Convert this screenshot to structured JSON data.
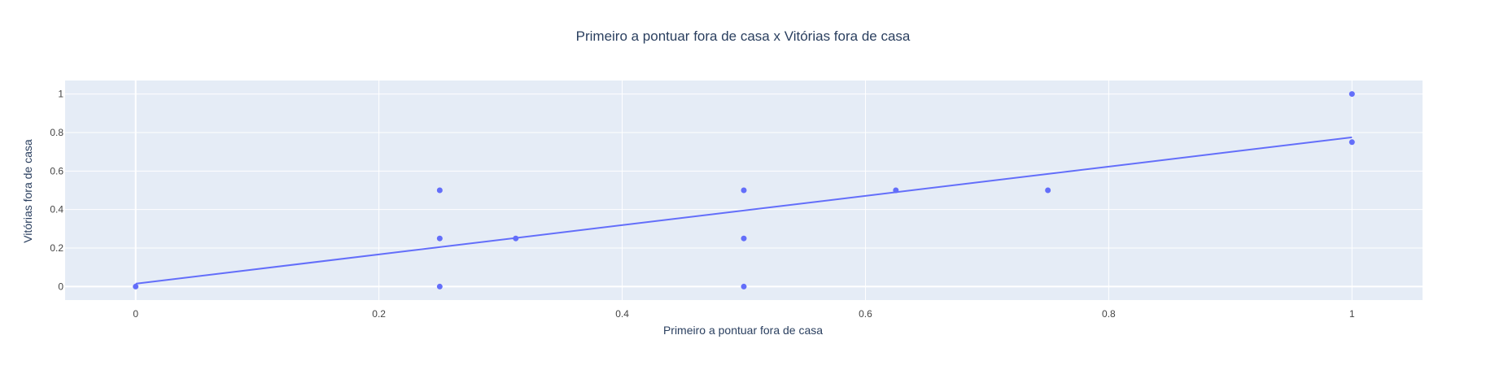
{
  "chart_data": {
    "type": "scatter",
    "title": "Primeiro a pontuar fora de casa x Vitórias fora de casa",
    "xlabel": "Primeiro a pontuar fora de casa",
    "ylabel": "Vitórias fora de casa",
    "xlim": [
      -0.058,
      1.058
    ],
    "ylim": [
      -0.07,
      1.07
    ],
    "x_ticks": [
      0,
      0.2,
      0.4,
      0.6,
      0.8,
      1
    ],
    "x_tick_labels": [
      "0",
      "0.2",
      "0.4",
      "0.6",
      "0.8",
      "1"
    ],
    "y_ticks": [
      0,
      0.2,
      0.4,
      0.6,
      0.8,
      1
    ],
    "y_tick_labels": [
      "0",
      "0.2",
      "0.4",
      "0.6",
      "0.8",
      "1"
    ],
    "grid": true,
    "points": [
      {
        "x": 0,
        "y": 0
      },
      {
        "x": 0.25,
        "y": 0
      },
      {
        "x": 0.25,
        "y": 0.25
      },
      {
        "x": 0.25,
        "y": 0.5
      },
      {
        "x": 0.3125,
        "y": 0.25
      },
      {
        "x": 0.5,
        "y": 0
      },
      {
        "x": 0.5,
        "y": 0.25
      },
      {
        "x": 0.5,
        "y": 0.5
      },
      {
        "x": 0.625,
        "y": 0.5
      },
      {
        "x": 0.75,
        "y": 0.5
      },
      {
        "x": 1,
        "y": 0.75
      },
      {
        "x": 1,
        "y": 1
      }
    ],
    "trendline": {
      "x": [
        0,
        1
      ],
      "y": [
        0.015,
        0.775
      ]
    },
    "colors": {
      "marker": "#636efa",
      "plot_background": "#e5ecf6",
      "grid": "#ffffff",
      "text": "#2a3f5f",
      "tick_text": "#444444"
    }
  }
}
